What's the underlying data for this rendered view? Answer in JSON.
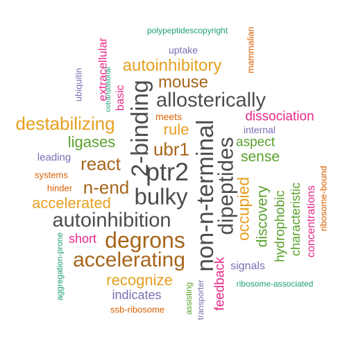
{
  "palette": {
    "dark_gray": "#4d4d4d",
    "brown": "#a6651a",
    "orange": "#e6a01f",
    "green": "#5aa02c",
    "teal": "#1b9e77",
    "magenta": "#e7298a",
    "purple": "#7570b3",
    "rust": "#d95f02"
  },
  "words": [
    {
      "text": "polypeptidescopyright",
      "color": "teal"
    },
    {
      "text": "uptake",
      "color": "purple"
    },
    {
      "text": "mammalian",
      "color": "rust"
    },
    {
      "text": "extracellular",
      "color": "magenta"
    },
    {
      "text": "ubiquitin",
      "color": "purple"
    },
    {
      "text": "cotranslational",
      "color": "teal"
    },
    {
      "text": "basic",
      "color": "magenta"
    },
    {
      "text": "autoinhibitory",
      "color": "orange"
    },
    {
      "text": "mouse",
      "color": "brown"
    },
    {
      "text": "allosterically",
      "color": "dark_gray"
    },
    {
      "text": "2-binding",
      "color": "dark_gray"
    },
    {
      "text": "destabilizing",
      "color": "orange"
    },
    {
      "text": "meets",
      "color": "rust"
    },
    {
      "text": "rule",
      "color": "orange"
    },
    {
      "text": "dissociation",
      "color": "magenta"
    },
    {
      "text": "internal",
      "color": "purple"
    },
    {
      "text": "ligases",
      "color": "green"
    },
    {
      "text": "ubr1",
      "color": "brown"
    },
    {
      "text": "aspect",
      "color": "green"
    },
    {
      "text": "leading",
      "color": "purple"
    },
    {
      "text": "react",
      "color": "brown"
    },
    {
      "text": "sense",
      "color": "green"
    },
    {
      "text": "non-n-terminal",
      "color": "dark_gray"
    },
    {
      "text": "dipeptides",
      "color": "dark_gray"
    },
    {
      "text": "ptr2",
      "color": "dark_gray"
    },
    {
      "text": "systems",
      "color": "rust"
    },
    {
      "text": "n-end",
      "color": "brown"
    },
    {
      "text": "hinder",
      "color": "rust"
    },
    {
      "text": "bulky",
      "color": "dark_gray"
    },
    {
      "text": "accelerated",
      "color": "orange"
    },
    {
      "text": "occupied",
      "color": "orange"
    },
    {
      "text": "discovery",
      "color": "green"
    },
    {
      "text": "hydrophobic",
      "color": "green"
    },
    {
      "text": "characteristic",
      "color": "green"
    },
    {
      "text": "concentrations",
      "color": "magenta"
    },
    {
      "text": "ribosome-bound",
      "color": "rust"
    },
    {
      "text": "autoinhibition",
      "color": "dark_gray"
    },
    {
      "text": "aggregation-prone",
      "color": "teal"
    },
    {
      "text": "short",
      "color": "magenta"
    },
    {
      "text": "degrons",
      "color": "brown"
    },
    {
      "text": "accelerating",
      "color": "brown"
    },
    {
      "text": "signals",
      "color": "purple"
    },
    {
      "text": "feedback",
      "color": "magenta"
    },
    {
      "text": "recognize",
      "color": "orange"
    },
    {
      "text": "ribosome-associated",
      "color": "teal"
    },
    {
      "text": "indicates",
      "color": "purple"
    },
    {
      "text": "assisting",
      "color": "green"
    },
    {
      "text": "transporter",
      "color": "purple"
    },
    {
      "text": "ssb-ribosome",
      "color": "rust"
    }
  ]
}
